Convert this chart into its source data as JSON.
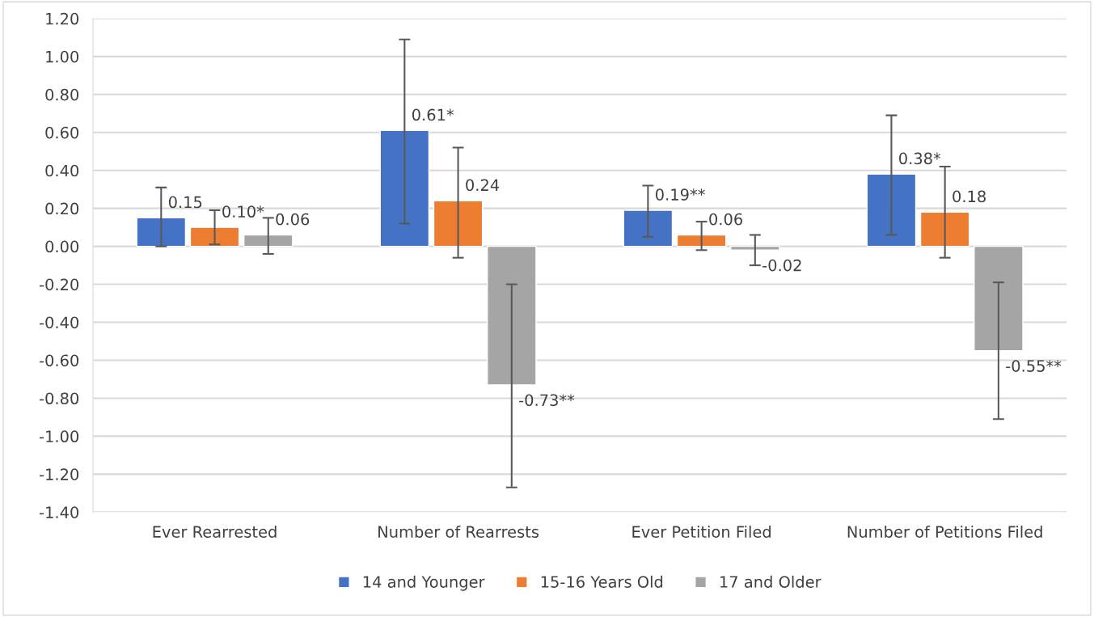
{
  "chart_data": {
    "type": "bar",
    "categories": [
      "Ever Rearrested",
      "Number of Rearrests",
      "Ever Petition Filed",
      "Number of Petitions Filed"
    ],
    "series": [
      {
        "name": "14 and Younger",
        "color": "#4472c4",
        "values": [
          0.15,
          0.61,
          0.19,
          0.38
        ],
        "value_labels": [
          "0.15",
          "0.61*",
          "0.19**",
          "0.38*"
        ],
        "errors": [
          [
            0.0,
            0.31
          ],
          [
            0.12,
            1.09
          ],
          [
            0.05,
            0.32
          ],
          [
            0.06,
            0.69
          ]
        ]
      },
      {
        "name": "15-16 Years Old",
        "color": "#ed7d31",
        "values": [
          0.1,
          0.24,
          0.06,
          0.18
        ],
        "value_labels": [
          "0.10*",
          "0.24",
          "0.06",
          "0.18"
        ],
        "errors": [
          [
            0.01,
            0.19
          ],
          [
            -0.06,
            0.52
          ],
          [
            -0.02,
            0.13
          ],
          [
            -0.06,
            0.42
          ]
        ]
      },
      {
        "name": "17 and Older",
        "color": "#a5a5a5",
        "values": [
          0.06,
          -0.73,
          -0.02,
          -0.55
        ],
        "value_labels": [
          "0.06",
          "-0.73**",
          "-0.02",
          "-0.55**"
        ],
        "errors": [
          [
            -0.04,
            0.15
          ],
          [
            -1.27,
            -0.2
          ],
          [
            -0.1,
            0.06
          ],
          [
            -0.91,
            -0.19
          ]
        ]
      }
    ],
    "ylim": [
      -1.4,
      1.2
    ],
    "yticks": [
      {
        "value": -1.4,
        "label": "-1.40"
      },
      {
        "value": -1.2,
        "label": "-1.20"
      },
      {
        "value": -1.0,
        "label": "-1.00"
      },
      {
        "value": -0.8,
        "label": "-0.80"
      },
      {
        "value": -0.6,
        "label": "-0.60"
      },
      {
        "value": -0.4,
        "label": "-0.40"
      },
      {
        "value": -0.2,
        "label": "-0.20"
      },
      {
        "value": 0,
        "label": "0.00"
      },
      {
        "value": 0.2,
        "label": "0.20"
      },
      {
        "value": 0.4,
        "label": "0.40"
      },
      {
        "value": 0.6,
        "label": "0.60"
      },
      {
        "value": 0.8,
        "label": "0.80"
      },
      {
        "value": 1.0,
        "label": "1.00"
      },
      {
        "value": 1.2,
        "label": "1.20"
      }
    ],
    "grid": "y",
    "legend": "bottom"
  }
}
